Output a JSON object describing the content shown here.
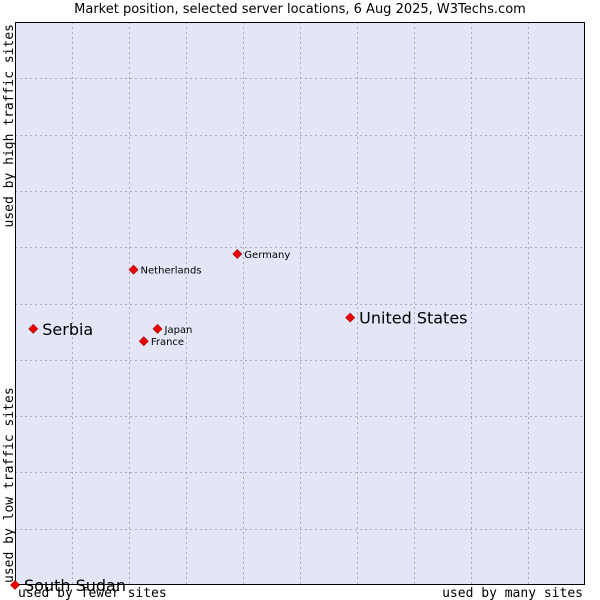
{
  "chart_data": {
    "type": "scatter",
    "title": "Market position, selected server locations, 6 Aug 2025, W3Techs.com",
    "xlabel_low": "used by fewer sites",
    "xlabel_high": "used by many sites",
    "ylabel_low": "used by low traffic sites",
    "ylabel_high": "used by high traffic sites",
    "xlim": [
      0,
      100
    ],
    "ylim": [
      0,
      100
    ],
    "grid": true,
    "colors": {
      "plot_bg": "#e4e6f8",
      "grid": "#a8aac4",
      "point": "#ee0000",
      "point_stroke": "#990000"
    },
    "points": [
      {
        "name": "United States",
        "x": 58.8,
        "y": 47.5,
        "emphasis": "large"
      },
      {
        "name": "Serbia",
        "x": 3.2,
        "y": 45.5,
        "emphasis": "large"
      },
      {
        "name": "South Sudan",
        "x": 0.0,
        "y": 0.0,
        "emphasis": "large"
      },
      {
        "name": "Germany",
        "x": 39.0,
        "y": 58.8,
        "emphasis": "small"
      },
      {
        "name": "Netherlands",
        "x": 20.8,
        "y": 56.0,
        "emphasis": "small"
      },
      {
        "name": "Japan",
        "x": 25.0,
        "y": 45.5,
        "emphasis": "small"
      },
      {
        "name": "France",
        "x": 22.6,
        "y": 43.3,
        "emphasis": "small"
      }
    ]
  }
}
